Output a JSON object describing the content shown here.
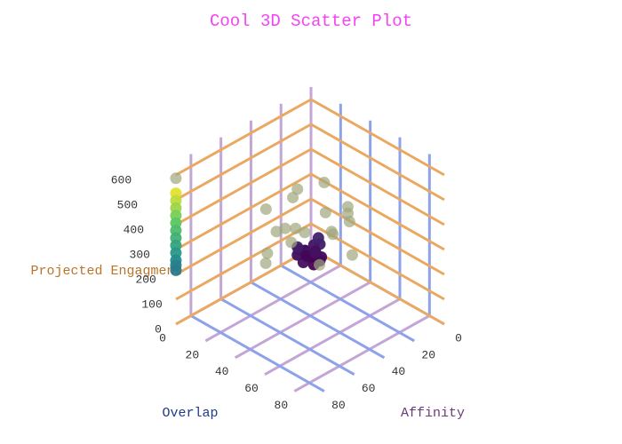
{
  "chart_data": {
    "type": "scatter3d",
    "title": "Cool 3D Scatter Plot",
    "title_color": "#f542f5",
    "x_label": "Overlap",
    "x_label_color": "#1f3a8a",
    "y_label": "Affinity",
    "y_label_color": "#6b3a78",
    "z_label": "Projected Engagment",
    "z_label_color": "#b8742a",
    "xlim": [
      0,
      90
    ],
    "ylim": [
      0,
      90
    ],
    "zlim": [
      0,
      650
    ],
    "xticks": [
      0,
      20,
      40,
      60,
      80
    ],
    "yticks": [
      0,
      20,
      40,
      60,
      80
    ],
    "zticks": [
      0,
      100,
      200,
      300,
      400,
      500,
      600
    ],
    "grid": true,
    "floor_x_grid_color": "#c3a6d6",
    "floor_y_grid_color": "#8ea2ea",
    "wall_z_grid_color": "#eaa860",
    "colorscale": [
      "#440154",
      "#3b528b",
      "#21918c",
      "#5ec962",
      "#fde725"
    ],
    "series": [
      {
        "colorscale": true,
        "x": [
          2,
          2,
          2,
          2,
          2,
          2,
          2,
          2,
          2,
          2,
          2,
          2,
          0,
          2,
          4,
          6,
          8,
          10,
          3,
          5,
          1,
          7,
          12,
          9,
          4,
          6,
          2,
          8,
          5,
          11
        ],
        "y": [
          92,
          92,
          92,
          92,
          92,
          92,
          92,
          92,
          92,
          92,
          92,
          92,
          4,
          6,
          2,
          8,
          10,
          3,
          12,
          5,
          9,
          1,
          6,
          14,
          7,
          3,
          11,
          5,
          0,
          9
        ],
        "z": [
          540,
          510,
          480,
          450,
          420,
          390,
          360,
          330,
          300,
          270,
          250,
          230,
          5,
          20,
          35,
          15,
          40,
          10,
          25,
          0,
          30,
          45,
          12,
          22,
          8,
          18,
          50,
          28,
          60,
          3
        ]
      },
      {
        "color": "#9fa77c",
        "x": [
          2,
          20,
          25,
          5,
          8,
          30,
          35,
          15,
          3,
          12,
          28,
          33,
          18,
          6,
          22,
          40,
          10,
          0,
          26,
          14
        ],
        "y": [
          92,
          30,
          15,
          28,
          20,
          5,
          10,
          32,
          12,
          25,
          2,
          18,
          22,
          35,
          8,
          12,
          40,
          30,
          20,
          5
        ],
        "z": [
          600,
          250,
          280,
          180,
          300,
          260,
          320,
          240,
          290,
          150,
          210,
          230,
          200,
          120,
          170,
          150,
          110,
          260,
          90,
          330
        ]
      }
    ]
  }
}
